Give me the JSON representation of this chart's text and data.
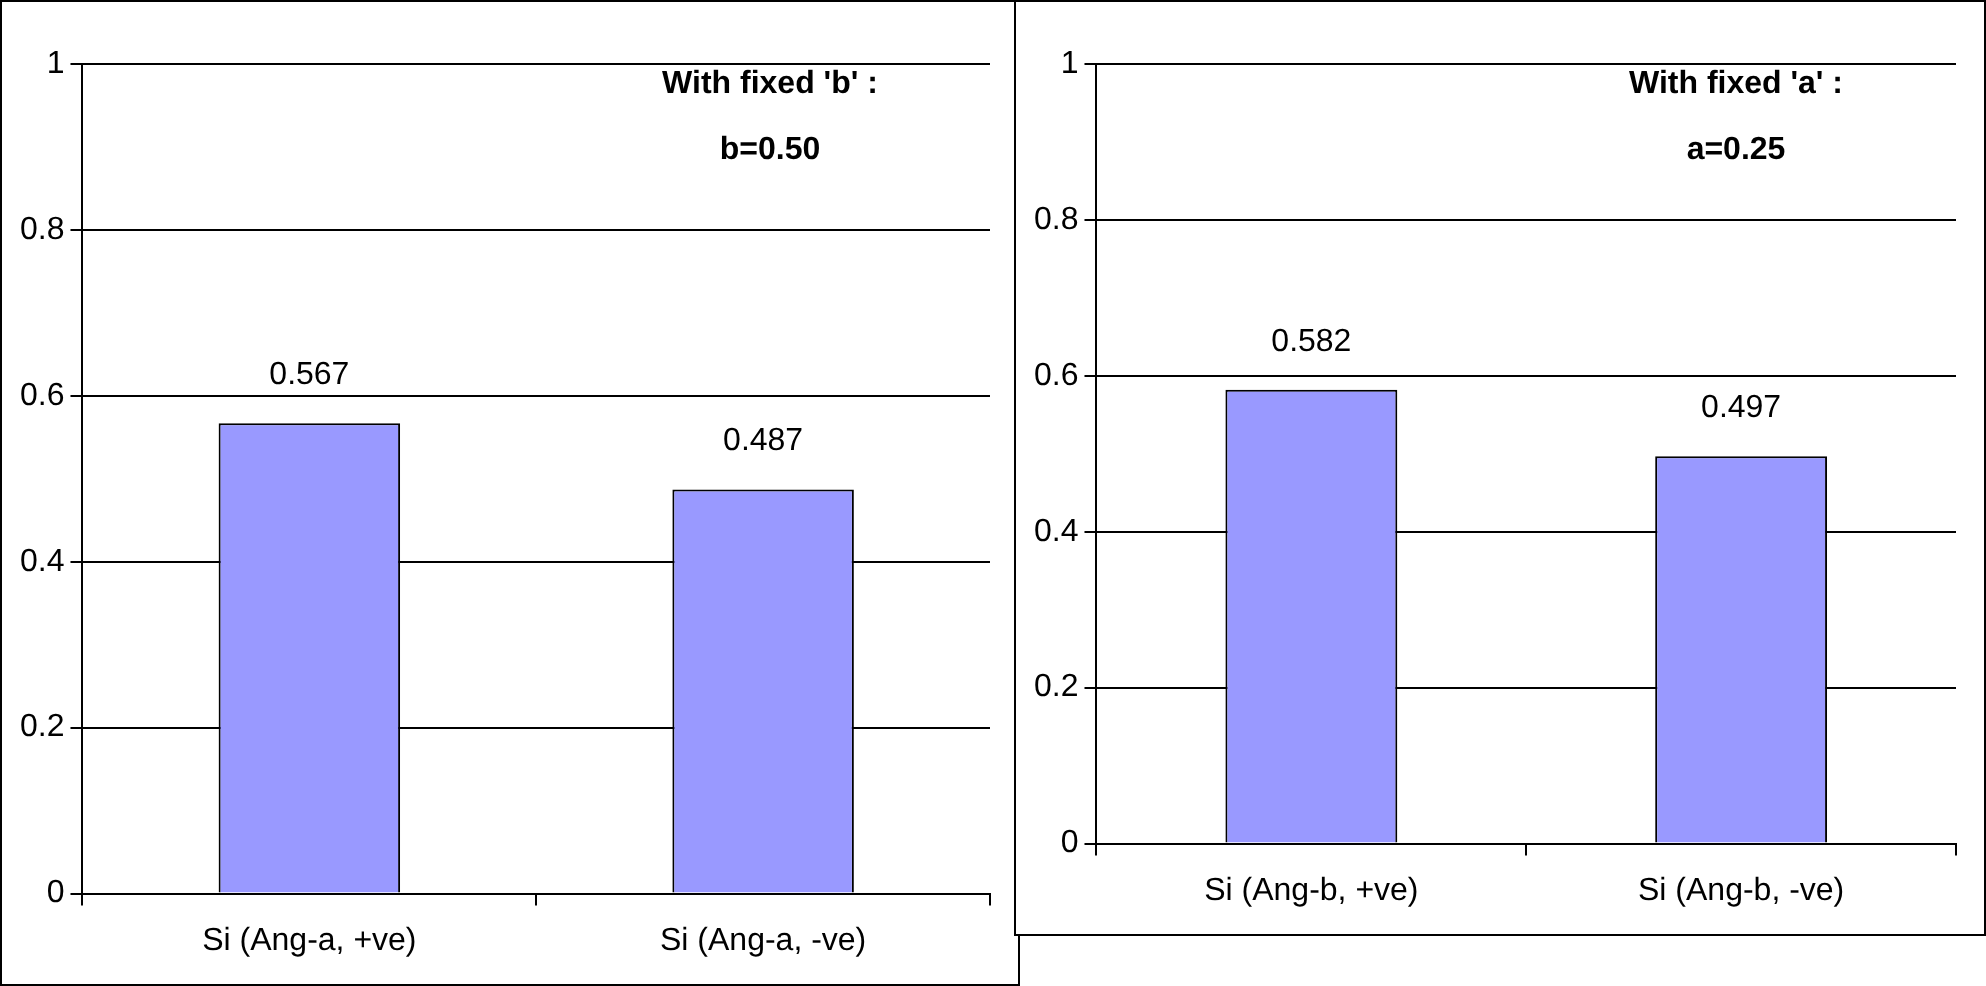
{
  "chart_data": [
    {
      "type": "bar",
      "categories": [
        "Si (Ang-a, +ve)",
        "Si (Ang-a, -ve)"
      ],
      "values": [
        0.567,
        0.487
      ],
      "color": "#9999ff",
      "ylim": [
        0,
        1
      ],
      "yticks": [
        0,
        0.2,
        0.4,
        0.6,
        0.8,
        1
      ],
      "grid": "y",
      "data_labels": true,
      "annotations": [
        "With fixed 'b' :",
        "b=0.50"
      ]
    },
    {
      "type": "bar",
      "categories": [
        "Si (Ang-b, +ve)",
        "Si (Ang-b, -ve)"
      ],
      "values": [
        0.582,
        0.497
      ],
      "color": "#9999ff",
      "ylim": [
        0,
        1
      ],
      "yticks": [
        0,
        0.2,
        0.4,
        0.6,
        0.8,
        1
      ],
      "grid": "y",
      "data_labels": true,
      "annotations": [
        "With fixed 'a' :",
        "a=0.25"
      ]
    }
  ]
}
